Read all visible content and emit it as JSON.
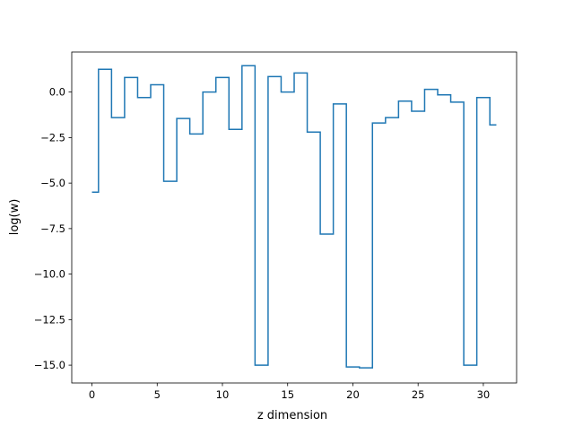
{
  "chart_data": {
    "type": "line",
    "step": "mid",
    "xlabel": "z dimension",
    "ylabel": "log(w)",
    "xlim": [
      -1.55,
      32.55
    ],
    "ylim": [
      -15.98,
      2.2
    ],
    "grid": false,
    "line_color": "#1f77b4",
    "xticks": [
      0,
      5,
      10,
      15,
      20,
      25,
      30
    ],
    "xtick_labels": [
      "0",
      "5",
      "10",
      "15",
      "20",
      "25",
      "30"
    ],
    "yticks": [
      0.0,
      -2.5,
      -5.0,
      -7.5,
      -10.0,
      -12.5,
      -15.0
    ],
    "ytick_labels": [
      "0.0",
      "−2.5",
      "−5.0",
      "−7.5",
      "−10.0",
      "−12.5",
      "−15.0"
    ],
    "series": [
      {
        "x": [
          0,
          1,
          2,
          3,
          4,
          5,
          6,
          7,
          8,
          9,
          10,
          11,
          12,
          13,
          14,
          15,
          16,
          17,
          18,
          19,
          20,
          21,
          22,
          23,
          24,
          25,
          26,
          27,
          28,
          29,
          30,
          31
        ],
        "values": [
          -5.5,
          1.25,
          -1.4,
          0.8,
          -0.3,
          0.4,
          -4.9,
          -1.45,
          -2.3,
          0.0,
          0.8,
          -2.05,
          1.45,
          -15.0,
          0.85,
          0.0,
          1.05,
          -2.2,
          -7.8,
          -0.65,
          -15.1,
          -15.15,
          -1.7,
          -1.4,
          -0.5,
          -1.05,
          0.15,
          -0.15,
          -0.55,
          -15.0,
          -0.3,
          -1.8
        ]
      }
    ]
  }
}
